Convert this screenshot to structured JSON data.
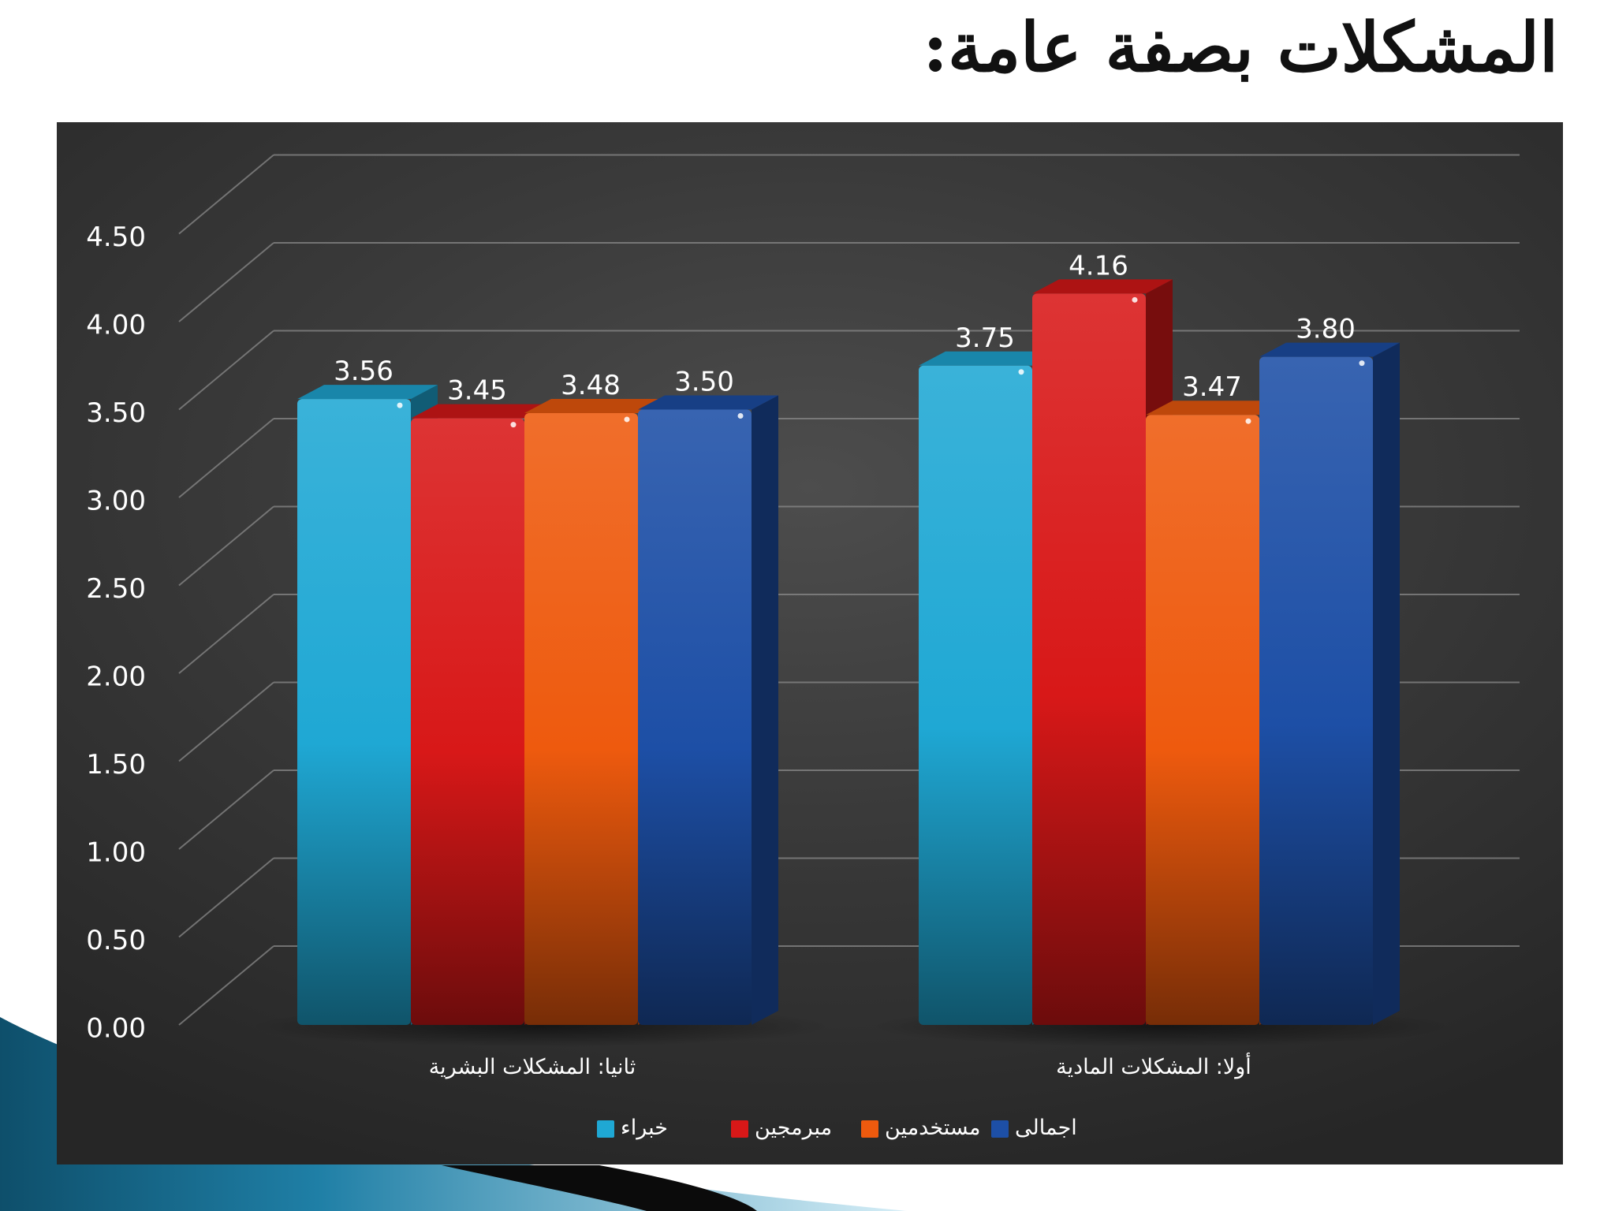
{
  "slide": {
    "title": "المشكلات بصفة عامة:"
  },
  "chart_data": {
    "type": "bar",
    "categories": [
      "ثانيا: المشكلات البشرية",
      "أولا: المشكلات المادية"
    ],
    "series": [
      {
        "name": "خبراء",
        "values": [
          3.56,
          3.75
        ],
        "color": "#1fa8d4"
      },
      {
        "name": "مبرمجين",
        "values": [
          3.45,
          4.16
        ],
        "color": "#d81818"
      },
      {
        "name": "مستخدمين",
        "values": [
          3.48,
          3.47
        ],
        "color": "#ee5a0e"
      },
      {
        "name": "اجمالى",
        "values": [
          3.5,
          3.8
        ],
        "color": "#1d4fa6"
      }
    ],
    "ylim": [
      0,
      4.5
    ],
    "yticks": [
      "0.00",
      "0.50",
      "1.00",
      "1.50",
      "2.00",
      "2.50",
      "3.00",
      "3.50",
      "4.00",
      "4.50"
    ],
    "grid": true,
    "legend_position": "bottom",
    "background": "#3a3a3a"
  }
}
